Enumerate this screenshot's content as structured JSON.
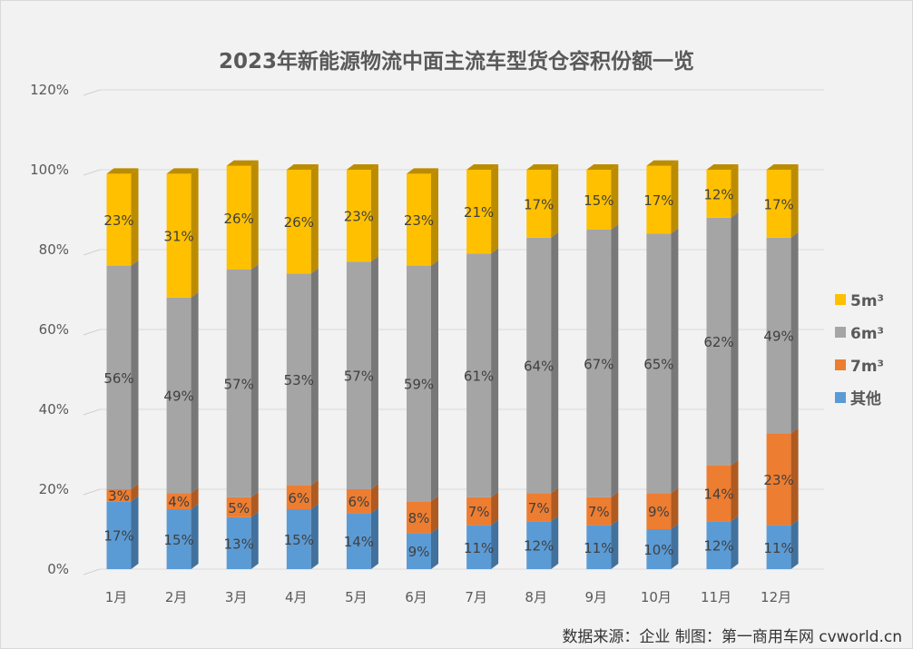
{
  "chart_data": {
    "type": "bar",
    "stacked": true,
    "three_d": true,
    "title": "2023年新能源物流中面主流车型货仓容积份额一览",
    "categories": [
      "1月",
      "2月",
      "3月",
      "4月",
      "5月",
      "6月",
      "7月",
      "8月",
      "9月",
      "10月",
      "11月",
      "12月"
    ],
    "series": [
      {
        "name": "其他",
        "color": "#5B9BD5",
        "side": "#41719C",
        "values": [
          17,
          15,
          13,
          15,
          14,
          9,
          11,
          12,
          11,
          10,
          12,
          11
        ]
      },
      {
        "name": "7m³",
        "color": "#ED7D31",
        "side": "#AE5A21",
        "values": [
          3,
          4,
          5,
          6,
          6,
          8,
          7,
          7,
          7,
          9,
          14,
          23
        ]
      },
      {
        "name": "6m³",
        "color": "#A5A5A5",
        "side": "#787878",
        "values": [
          56,
          49,
          57,
          53,
          57,
          59,
          61,
          64,
          67,
          65,
          62,
          49
        ]
      },
      {
        "name": "5m³",
        "color": "#FFC000",
        "side": "#BC8C00",
        "values": [
          23,
          31,
          26,
          26,
          23,
          23,
          21,
          17,
          15,
          17,
          12,
          17
        ]
      }
    ],
    "unit": "%",
    "ylim": [
      0,
      120
    ],
    "yticks": [
      "0%",
      "20%",
      "40%",
      "60%",
      "80%",
      "100%",
      "120%"
    ],
    "grid": true,
    "legend": "right",
    "legend_order": [
      "5m³",
      "6m³",
      "7m³",
      "其他"
    ]
  },
  "footer": {
    "source": "数据来源：企业 制图：第一商用车网 cvworld.cn"
  }
}
